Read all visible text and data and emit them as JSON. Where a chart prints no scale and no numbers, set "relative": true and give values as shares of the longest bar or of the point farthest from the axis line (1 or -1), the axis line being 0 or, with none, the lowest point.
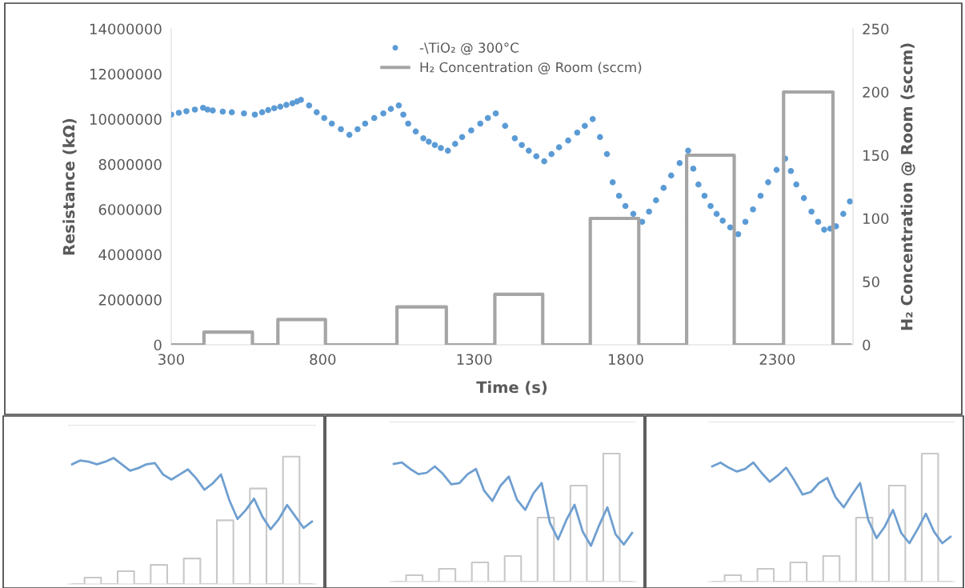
{
  "chart_data": [
    {
      "type": "scatter",
      "xlabel": "Time (s)",
      "ylabel": "Resistance (kΩ)",
      "y2label": "H₂ Concentration @ Room (sccm)",
      "xlim": [
        300,
        2550
      ],
      "xticks": [
        300,
        800,
        1300,
        1800,
        2300
      ],
      "ylim": [
        0,
        14000000
      ],
      "yticks": [
        0,
        2000000,
        4000000,
        6000000,
        8000000,
        10000000,
        12000000,
        14000000
      ],
      "y2lim": [
        0,
        250
      ],
      "y2ticks": [
        0,
        50,
        100,
        150,
        200,
        250
      ],
      "legend": "top",
      "marker": "circle",
      "series": [
        {
          "name": "-\\TiO₂ @ 300°C",
          "color": "#5b9bd5",
          "x": [
            300,
            325,
            350,
            378,
            405,
            420,
            437,
            470,
            500,
            540,
            576,
            600,
            620,
            640,
            660,
            680,
            700,
            715,
            728,
            755,
            780,
            805,
            830,
            860,
            888,
            915,
            940,
            970,
            1000,
            1025,
            1051,
            1066,
            1082,
            1107,
            1132,
            1150,
            1170,
            1190,
            1213,
            1237,
            1260,
            1290,
            1320,
            1345,
            1371,
            1402,
            1434,
            1457,
            1480,
            1505,
            1531,
            1555,
            1580,
            1610,
            1640,
            1665,
            1691,
            1715,
            1738,
            1757,
            1778,
            1799,
            1825,
            1854,
            1877,
            1900,
            1925,
            1950,
            1978,
            2006,
            2023,
            2040,
            2060,
            2080,
            2100,
            2120,
            2145,
            2171,
            2195,
            2220,
            2245,
            2270,
            2298,
            2326,
            2345,
            2363,
            2388,
            2413,
            2435,
            2455,
            2475,
            2494,
            2518,
            2540
          ],
          "values": [
            10200000,
            10280000,
            10350000,
            10420000,
            10500000,
            10420000,
            10380000,
            10330000,
            10300000,
            10250000,
            10200000,
            10300000,
            10400000,
            10480000,
            10550000,
            10630000,
            10700000,
            10780000,
            10850000,
            10600000,
            10300000,
            10050000,
            9800000,
            9550000,
            9300000,
            9550000,
            9800000,
            10050000,
            10250000,
            10450000,
            10600000,
            10200000,
            9800000,
            9450000,
            9150000,
            9000000,
            8850000,
            8720000,
            8600000,
            8900000,
            9200000,
            9500000,
            9800000,
            10050000,
            10250000,
            9700000,
            9150000,
            8850000,
            8600000,
            8350000,
            8130000,
            8450000,
            8750000,
            9050000,
            9400000,
            9700000,
            10000000,
            9200000,
            8450000,
            7200000,
            6600000,
            6150000,
            5800000,
            5450000,
            5900000,
            6400000,
            6950000,
            7500000,
            8050000,
            8600000,
            7800000,
            7100000,
            6600000,
            6150000,
            5800000,
            5500000,
            5200000,
            4900000,
            5450000,
            6000000,
            6600000,
            7200000,
            7750000,
            8250000,
            7700000,
            7100000,
            6500000,
            5900000,
            5450000,
            5100000,
            5150000,
            5250000,
            5800000,
            6350000
          ]
        },
        {
          "name": "H₂ Concentration @ Room (sccm)",
          "type": "line",
          "axis": "y2",
          "color": "#a5a5a5",
          "marker": "none",
          "x": [
            300,
            408,
            408,
            568,
            568,
            652,
            652,
            809,
            809,
            1045,
            1045,
            1208,
            1208,
            1368,
            1368,
            1526,
            1526,
            1683,
            1683,
            1843,
            1843,
            2001,
            2001,
            2158,
            2158,
            2321,
            2321,
            2484,
            2484,
            2540
          ],
          "values": [
            0,
            0,
            10,
            10,
            0,
            0,
            20,
            20,
            0,
            0,
            30,
            30,
            0,
            0,
            40,
            40,
            0,
            0,
            100,
            100,
            0,
            0,
            150,
            150,
            0,
            0,
            200,
            200,
            0,
            0
          ]
        }
      ]
    },
    {
      "type": "line",
      "relative": true,
      "categories": [
        null,
        null,
        null,
        null,
        null,
        null,
        null,
        null,
        null,
        null,
        null,
        null,
        null,
        null,
        null,
        null,
        null,
        null,
        null,
        null,
        null,
        null,
        null,
        null,
        null,
        null,
        null,
        null,
        null,
        null
      ],
      "series": [
        {
          "color": "#6f9fd0",
          "values": [
            0.94,
            0.97,
            0.96,
            0.94,
            0.96,
            0.99,
            0.94,
            0.89,
            0.91,
            0.94,
            0.95,
            0.86,
            0.82,
            0.86,
            0.9,
            0.83,
            0.74,
            0.79,
            0.86,
            0.66,
            0.51,
            0.58,
            0.67,
            0.53,
            0.43,
            0.51,
            0.62,
            0.53,
            0.44,
            0.49
          ]
        },
        {
          "type": "step",
          "color": "#c8c8c8",
          "values": [
            0,
            0,
            0.05,
            0.05,
            0,
            0,
            0.1,
            0.1,
            0,
            0,
            0.15,
            0.15,
            0,
            0,
            0.2,
            0.2,
            0,
            0,
            0.5,
            0.5,
            0,
            0,
            0.75,
            0.75,
            0,
            0,
            1,
            1,
            0,
            0
          ]
        }
      ]
    },
    {
      "type": "line",
      "relative": true,
      "categories": [
        null,
        null,
        null,
        null,
        null,
        null,
        null,
        null,
        null,
        null,
        null,
        null,
        null,
        null,
        null,
        null,
        null,
        null,
        null,
        null,
        null,
        null,
        null,
        null,
        null,
        null,
        null,
        null,
        null,
        null
      ],
      "series": [
        {
          "color": "#6f9fd0",
          "values": [
            0.92,
            0.93,
            0.88,
            0.84,
            0.85,
            0.9,
            0.84,
            0.76,
            0.77,
            0.84,
            0.88,
            0.71,
            0.63,
            0.75,
            0.82,
            0.64,
            0.56,
            0.69,
            0.77,
            0.46,
            0.33,
            0.48,
            0.6,
            0.39,
            0.28,
            0.44,
            0.58,
            0.37,
            0.29,
            0.38
          ]
        },
        {
          "type": "step",
          "color": "#c8c8c8",
          "values": [
            0,
            0,
            0.05,
            0.05,
            0,
            0,
            0.1,
            0.1,
            0,
            0,
            0.15,
            0.15,
            0,
            0,
            0.2,
            0.2,
            0,
            0,
            0.5,
            0.5,
            0,
            0,
            0.75,
            0.75,
            0,
            0,
            1,
            1,
            0,
            0
          ]
        }
      ]
    },
    {
      "type": "line",
      "relative": true,
      "categories": [
        null,
        null,
        null,
        null,
        null,
        null,
        null,
        null,
        null,
        null,
        null,
        null,
        null,
        null,
        null,
        null,
        null,
        null,
        null,
        null,
        null,
        null,
        null,
        null,
        null,
        null,
        null,
        null,
        null,
        null
      ],
      "series": [
        {
          "color": "#6f9fd0",
          "values": [
            0.9,
            0.93,
            0.89,
            0.86,
            0.88,
            0.93,
            0.85,
            0.78,
            0.83,
            0.89,
            0.79,
            0.68,
            0.7,
            0.77,
            0.81,
            0.66,
            0.58,
            0.68,
            0.77,
            0.48,
            0.34,
            0.43,
            0.56,
            0.38,
            0.3,
            0.41,
            0.53,
            0.39,
            0.3,
            0.35
          ]
        },
        {
          "type": "step",
          "color": "#c8c8c8",
          "values": [
            0,
            0,
            0.05,
            0.05,
            0,
            0,
            0.1,
            0.1,
            0,
            0,
            0.15,
            0.15,
            0,
            0,
            0.2,
            0.2,
            0,
            0,
            0.5,
            0.5,
            0,
            0,
            0.75,
            0.75,
            0,
            0,
            1,
            1,
            0,
            0
          ]
        }
      ]
    }
  ]
}
